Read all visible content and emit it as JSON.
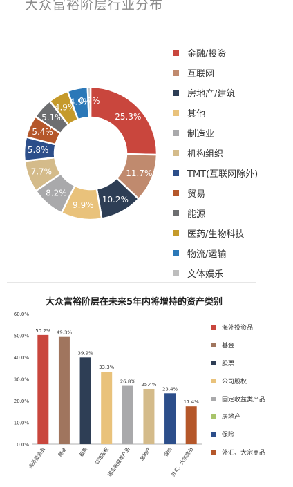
{
  "donut": {
    "title": "大众富裕阶层行业分布",
    "chart_data": {
      "type": "pie",
      "categories": [
        "金融/投资",
        "互联网",
        "房地产/建筑",
        "其他",
        "制造业",
        "机构组织",
        "TMT(互联网除外)",
        "贸易",
        "能源",
        "医药/生物科技",
        "物流/运输",
        "文体娱乐"
      ],
      "values": [
        25.3,
        11.7,
        10.2,
        9.9,
        8.2,
        7.7,
        5.8,
        5.4,
        5.1,
        4.9,
        4.9,
        0.7
      ],
      "labels": [
        "25.3%",
        "11.7%",
        "10.2%",
        "9.9%",
        "8.2%",
        "7.7%",
        "5.8%",
        "5.4%",
        "5.1%",
        "4.9%",
        "4.9%",
        "0.7%"
      ],
      "colors": [
        "#c9463d",
        "#c08a6e",
        "#2e3e55",
        "#e9c27b",
        "#a9a9ab",
        "#d4bb8a",
        "#2c4e8a",
        "#b5572a",
        "#6d6e70",
        "#c59a2b",
        "#2b78b8",
        "#bdbdbd"
      ],
      "legend_position": "right"
    }
  },
  "bar": {
    "title": "大众富裕阶层在未来5年内将增持的资产类别",
    "chart_data": {
      "type": "bar",
      "categories": [
        "海外投资品",
        "基金",
        "股票",
        "公司股权",
        "固定收益类产品",
        "房地产",
        "保险",
        "外汇、大宗商品"
      ],
      "values": [
        50.2,
        49.3,
        39.9,
        33.3,
        26.8,
        25.4,
        23.4,
        17.4
      ],
      "value_labels": [
        "50.2%",
        "49.3%",
        "39.9%",
        "33.3%",
        "26.8%",
        "25.4%",
        "23.4%",
        "17.4%"
      ],
      "colors": [
        "#c9463d",
        "#a0755e",
        "#2e3e55",
        "#e9c27b",
        "#a9a9ab",
        "#d4bb8a",
        "#2c4e8a",
        "#b5572a"
      ],
      "legend_colors": [
        "#c9463d",
        "#a0755e",
        "#2e3e55",
        "#e9c27b",
        "#a9a9ab",
        "#a8c46a",
        "#2c4e8a",
        "#b5572a"
      ],
      "ylim": [
        0,
        60
      ],
      "yticks": [
        "0.0%",
        "10.0%",
        "20.0%",
        "30.0%",
        "40.0%",
        "50.0%",
        "60.0%"
      ],
      "grid": false,
      "legend_position": "right"
    }
  }
}
